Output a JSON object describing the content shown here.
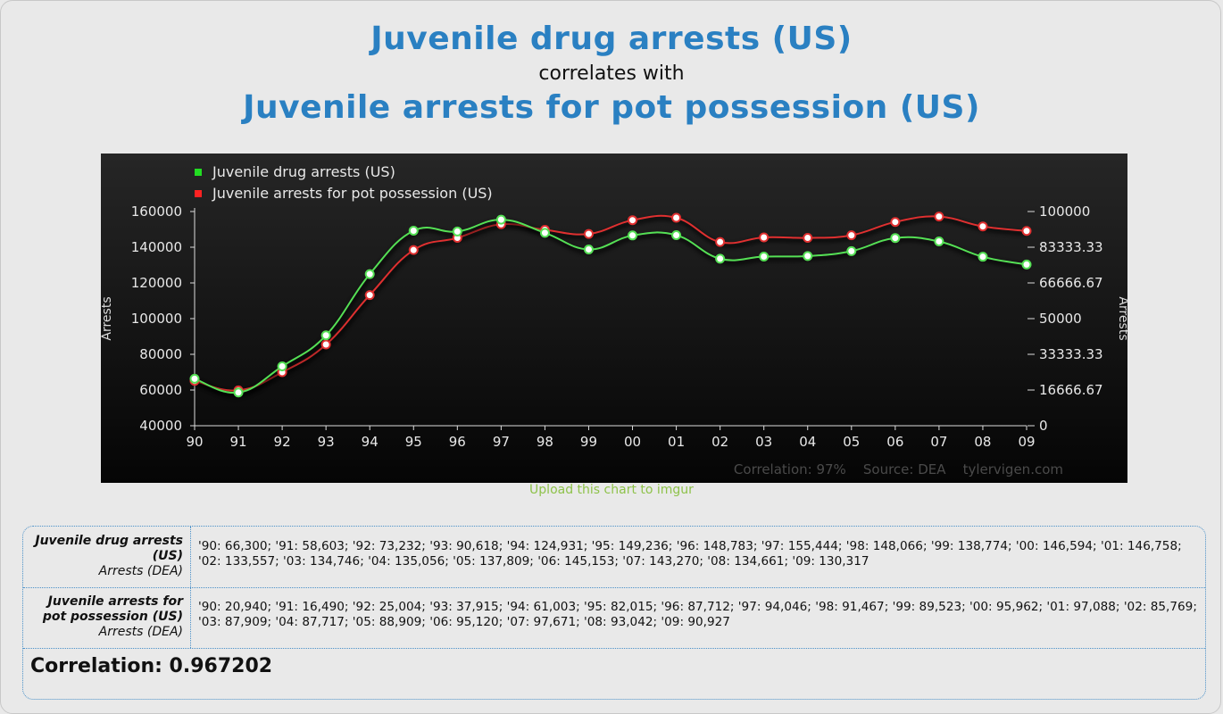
{
  "header": {
    "title_1": "Juvenile drug arrests (US)",
    "connector": "correlates with",
    "title_2": "Juvenile arrests for pot possession (US)"
  },
  "chart_data": {
    "type": "line",
    "categories": [
      "90",
      "91",
      "92",
      "93",
      "94",
      "95",
      "96",
      "97",
      "98",
      "99",
      "00",
      "01",
      "02",
      "03",
      "04",
      "05",
      "06",
      "07",
      "08",
      "09"
    ],
    "series": [
      {
        "name": "Juvenile drug arrests (US)",
        "axis": "left",
        "color": "#55e055",
        "values": [
          66300,
          58603,
          73232,
          90618,
          124931,
          149236,
          148783,
          155444,
          148066,
          138774,
          146594,
          146758,
          133557,
          134746,
          135056,
          137809,
          145153,
          143270,
          134661,
          130317
        ]
      },
      {
        "name": "Juvenile arrests for pot possession (US)",
        "axis": "right",
        "color": "#e03030",
        "values": [
          20940,
          16490,
          25004,
          37915,
          61003,
          82015,
          87712,
          94046,
          91467,
          89523,
          95962,
          97088,
          85769,
          87909,
          87717,
          88909,
          95120,
          97671,
          93042,
          90927
        ]
      }
    ],
    "legend_colors": [
      "#22dd22",
      "#ff2222"
    ],
    "left_axis": {
      "label": "Arrests",
      "ylim": [
        40000,
        160000
      ],
      "ticks": [
        "160000",
        "140000",
        "120000",
        "100000",
        "80000",
        "60000",
        "40000"
      ]
    },
    "right_axis": {
      "label": "Arrests",
      "ylim": [
        0,
        100000
      ],
      "ticks": [
        "100000",
        "83333.33",
        "66666.67",
        "50000",
        "33333.33",
        "16666.67",
        "0"
      ]
    },
    "footer_text": "Correlation: 97%    Source: DEA    tylervigen.com",
    "grid": false,
    "legend_position": "top-left"
  },
  "upload_link": "Upload this chart to imgur",
  "table": {
    "rows": [
      {
        "name": "Juvenile drug arrests (US)",
        "source": "Arrests (DEA)",
        "values": "'90: 66,300; '91: 58,603; '92: 73,232; '93: 90,618; '94: 124,931; '95: 149,236; '96: 148,783; '97: 155,444; '98: 148,066; '99: 138,774; '00: 146,594; '01: 146,758; '02: 133,557; '03: 134,746; '04: 135,056; '05: 137,809; '06: 145,153; '07: 143,270; '08: 134,661; '09: 130,317"
      },
      {
        "name": "Juvenile arrests for pot possession (US)",
        "source": "Arrests (DEA)",
        "values": "'90: 20,940; '91: 16,490; '92: 25,004; '93: 37,915; '94: 61,003; '95: 82,015; '96: 87,712; '97: 94,046; '98: 91,467; '99: 89,523; '00: 95,962; '01: 97,088; '02: 85,769; '03: 87,909; '04: 87,717; '05: 88,909; '06: 95,120; '07: 97,671; '08: 93,042; '09: 90,927"
      }
    ],
    "correlation": "Correlation: 0.967202"
  }
}
